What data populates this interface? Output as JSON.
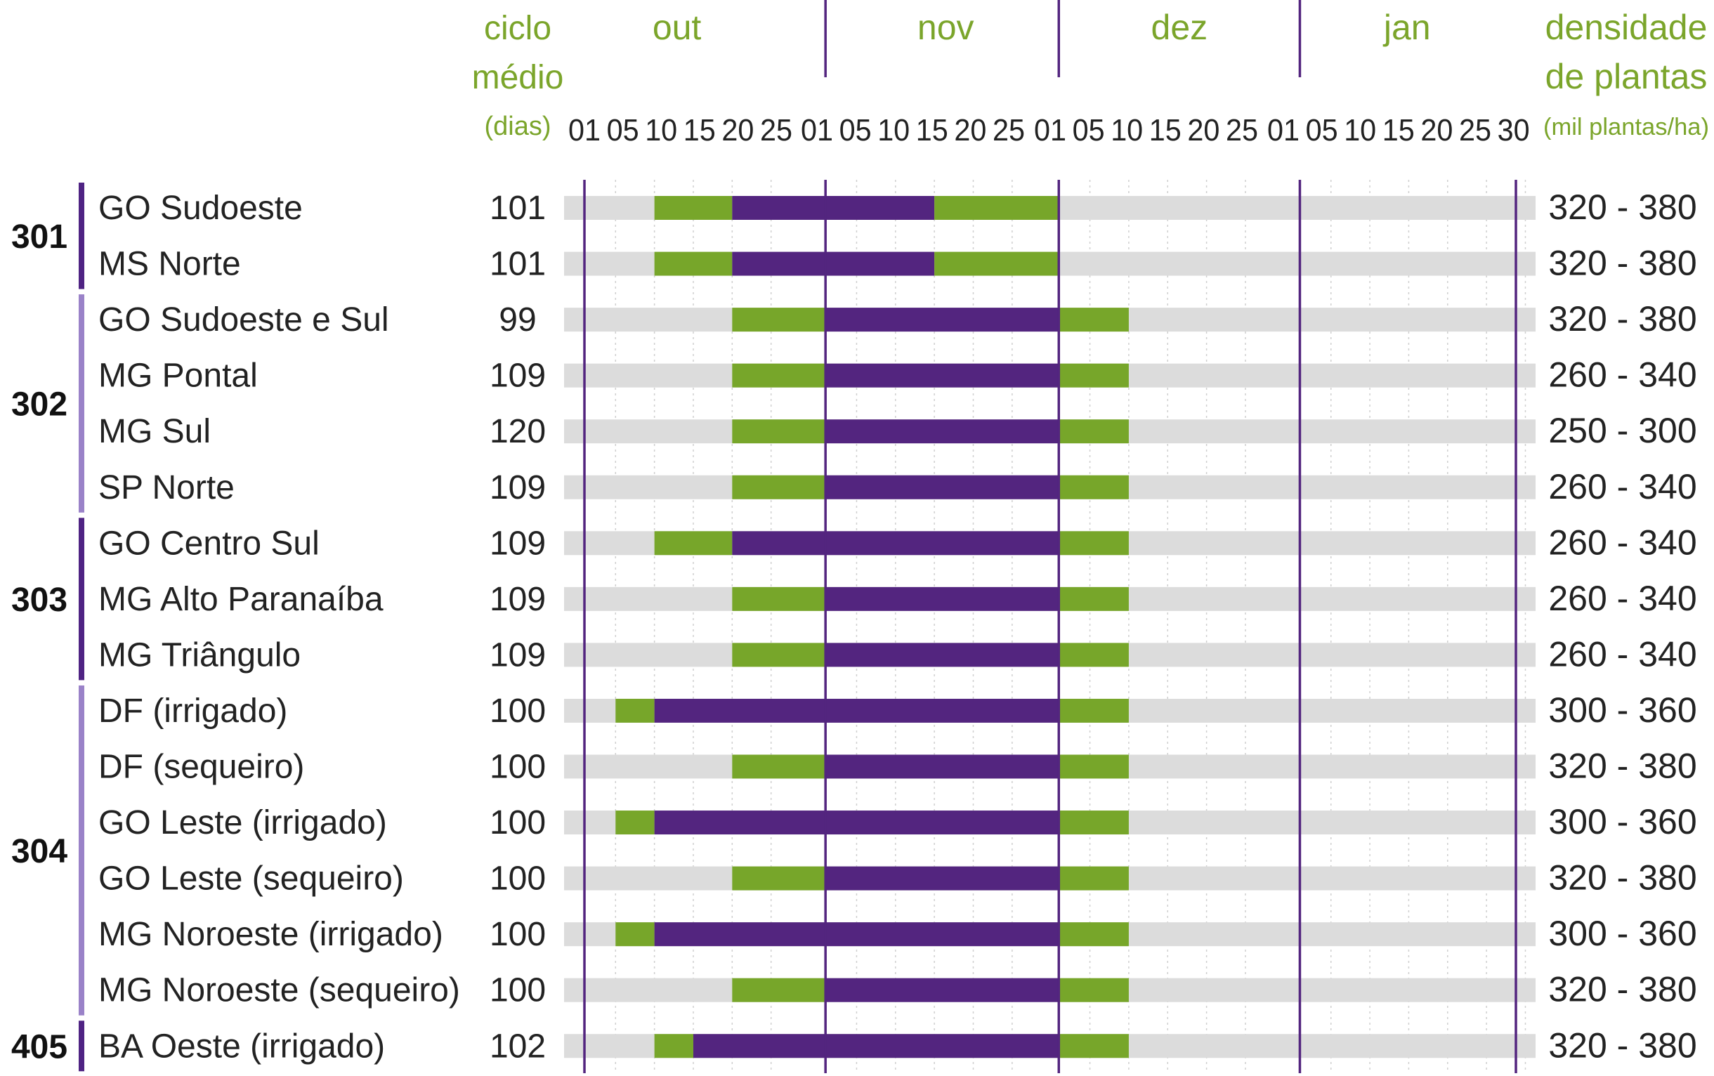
{
  "chart_data": {
    "type": "gantt",
    "header": {
      "cycle_label": [
        "ciclo",
        "médio"
      ],
      "cycle_unit": "(dias)",
      "density_label": [
        "densidade",
        "de plantas"
      ],
      "density_unit": "(mil plantas/ha)"
    },
    "months": [
      {
        "name": "out",
        "ticks": [
          "01",
          "05",
          "10",
          "15",
          "20",
          "25"
        ]
      },
      {
        "name": "nov",
        "ticks": [
          "01",
          "05",
          "10",
          "15",
          "20",
          "25"
        ]
      },
      {
        "name": "dez",
        "ticks": [
          "01",
          "05",
          "10",
          "15",
          "20",
          "25"
        ]
      },
      {
        "name": "jan",
        "ticks": [
          "01",
          "05",
          "10",
          "15",
          "20",
          "25",
          "30"
        ]
      }
    ],
    "groups": [
      {
        "code": "301",
        "color": "#4f2383",
        "rows": [
          0,
          1
        ]
      },
      {
        "code": "302",
        "color": "#9a82c8",
        "rows": [
          2,
          3,
          4,
          5
        ]
      },
      {
        "code": "303",
        "color": "#4f2383",
        "rows": [
          6,
          7,
          8
        ]
      },
      {
        "code": "304",
        "color": "#9a82c8",
        "rows": [
          9,
          10,
          11,
          12,
          13,
          14
        ]
      },
      {
        "code": "405",
        "color": "#4f2383",
        "rows": [
          15
        ]
      }
    ],
    "rows": [
      {
        "region": "GO Sudoeste",
        "cycle": "101",
        "density": "320 - 380",
        "green1": [
          "out 10",
          "out 20"
        ],
        "purple": [
          "out 20",
          "nov 15"
        ],
        "green2": [
          "nov 15",
          "dez 01"
        ]
      },
      {
        "region": "MS Norte",
        "cycle": "101",
        "density": "320 - 380",
        "green1": [
          "out 10",
          "out 20"
        ],
        "purple": [
          "out 20",
          "nov 15"
        ],
        "green2": [
          "nov 15",
          "dez 01"
        ]
      },
      {
        "region": "GO Sudoeste e Sul",
        "cycle": "99",
        "density": "320 - 380",
        "green1": [
          "out 20",
          "nov 01"
        ],
        "purple": [
          "nov 01",
          "dez 01"
        ],
        "green2": [
          "dez 01",
          "dez 10"
        ]
      },
      {
        "region": "MG Pontal",
        "cycle": "109",
        "density": "260 - 340",
        "green1": [
          "out 20",
          "nov 01"
        ],
        "purple": [
          "nov 01",
          "dez 01"
        ],
        "green2": [
          "dez 01",
          "dez 10"
        ]
      },
      {
        "region": "MG Sul",
        "cycle": "120",
        "density": "250 - 300",
        "green1": [
          "out 20",
          "nov 01"
        ],
        "purple": [
          "nov 01",
          "dez 01"
        ],
        "green2": [
          "dez 01",
          "dez 10"
        ]
      },
      {
        "region": "SP Norte",
        "cycle": "109",
        "density": "260 - 340",
        "green1": [
          "out 20",
          "nov 01"
        ],
        "purple": [
          "nov 01",
          "dez 01"
        ],
        "green2": [
          "dez 01",
          "dez 10"
        ]
      },
      {
        "region": "GO Centro Sul",
        "cycle": "109",
        "density": "260 - 340",
        "green1": [
          "out 10",
          "out 20"
        ],
        "purple": [
          "out 20",
          "dez 01"
        ],
        "green2": [
          "dez 01",
          "dez 10"
        ]
      },
      {
        "region": "MG Alto Paranaíba",
        "cycle": "109",
        "density": "260 - 340",
        "green1": [
          "out 20",
          "nov 01"
        ],
        "purple": [
          "nov 01",
          "dez 01"
        ],
        "green2": [
          "dez 01",
          "dez 10"
        ]
      },
      {
        "region": "MG Triângulo",
        "cycle": "109",
        "density": "260 - 340",
        "green1": [
          "out 20",
          "nov 01"
        ],
        "purple": [
          "nov 01",
          "dez 01"
        ],
        "green2": [
          "dez 01",
          "dez 10"
        ]
      },
      {
        "region": "DF (irrigado)",
        "cycle": "100",
        "density": "300 - 360",
        "green1": [
          "out 05",
          "out 10"
        ],
        "purple": [
          "out 10",
          "dez 01"
        ],
        "green2": [
          "dez 01",
          "dez 10"
        ]
      },
      {
        "region": "DF (sequeiro)",
        "cycle": "100",
        "density": "320 - 380",
        "green1": [
          "out 20",
          "nov 01"
        ],
        "purple": [
          "nov 01",
          "dez 01"
        ],
        "green2": [
          "dez 01",
          "dez 10"
        ]
      },
      {
        "region": "GO Leste (irrigado)",
        "cycle": "100",
        "density": "300 - 360",
        "green1": [
          "out 05",
          "out 10"
        ],
        "purple": [
          "out 10",
          "dez 01"
        ],
        "green2": [
          "dez 01",
          "dez 10"
        ]
      },
      {
        "region": "GO Leste (sequeiro)",
        "cycle": "100",
        "density": "320 - 380",
        "green1": [
          "out 20",
          "nov 01"
        ],
        "purple": [
          "nov 01",
          "dez 01"
        ],
        "green2": [
          "dez 01",
          "dez 10"
        ]
      },
      {
        "region": "MG Noroeste (irrigado)",
        "cycle": "100",
        "density": "300 - 360",
        "green1": [
          "out 05",
          "out 10"
        ],
        "purple": [
          "out 10",
          "dez 01"
        ],
        "green2": [
          "dez 01",
          "dez 10"
        ]
      },
      {
        "region": "MG Noroeste (sequeiro)",
        "cycle": "100",
        "density": "320 - 380",
        "green1": [
          "out 20",
          "nov 01"
        ],
        "purple": [
          "nov 01",
          "dez 01"
        ],
        "green2": [
          "dez 01",
          "dez 10"
        ]
      },
      {
        "region": "BA Oeste (irrigado)",
        "cycle": "102",
        "density": "320 - 380",
        "green1": [
          "out 10",
          "out 15"
        ],
        "purple": [
          "out 15",
          "dez 01"
        ],
        "green2": [
          "dez 01",
          "dez 10"
        ]
      }
    ],
    "colors": {
      "green": "#77a62a",
      "purple": "#53257f",
      "track": "#dcdcdc",
      "divider": "#53257f",
      "header_text": "#7ba52b",
      "text": "#222222"
    }
  }
}
